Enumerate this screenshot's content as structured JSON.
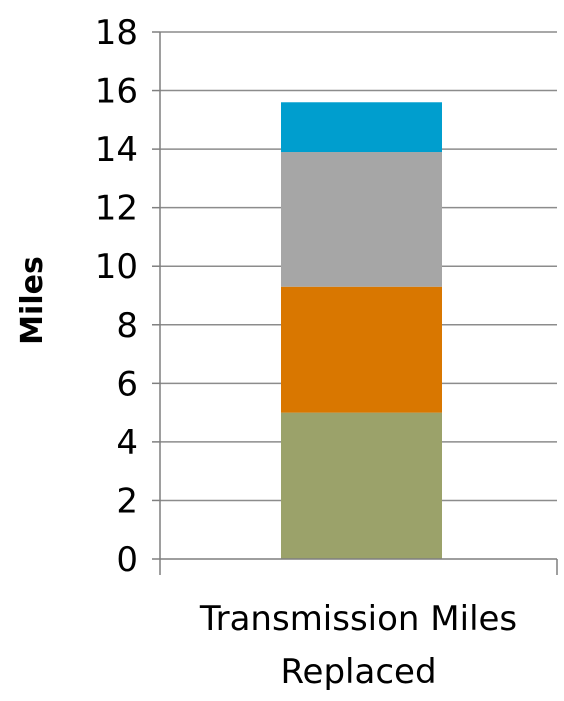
{
  "chart_data": {
    "type": "bar",
    "stacked": true,
    "categories": [
      "Transmission Miles Replaced"
    ],
    "category_label_lines": [
      "Transmission Miles",
      "Replaced"
    ],
    "series": [
      {
        "values": [
          5.0
        ],
        "color": "#9BA26A"
      },
      {
        "values": [
          4.3
        ],
        "color": "#D97700"
      },
      {
        "values": [
          4.6
        ],
        "color": "#A6A6A6"
      },
      {
        "values": [
          1.7
        ],
        "color": "#009ECE"
      }
    ],
    "title": "",
    "xlabel": "",
    "ylabel": "Miles",
    "ylim": [
      0,
      18
    ],
    "yticks": [
      0,
      2,
      4,
      6,
      8,
      10,
      12,
      14,
      16,
      18
    ],
    "grid": true,
    "legend": "none"
  }
}
